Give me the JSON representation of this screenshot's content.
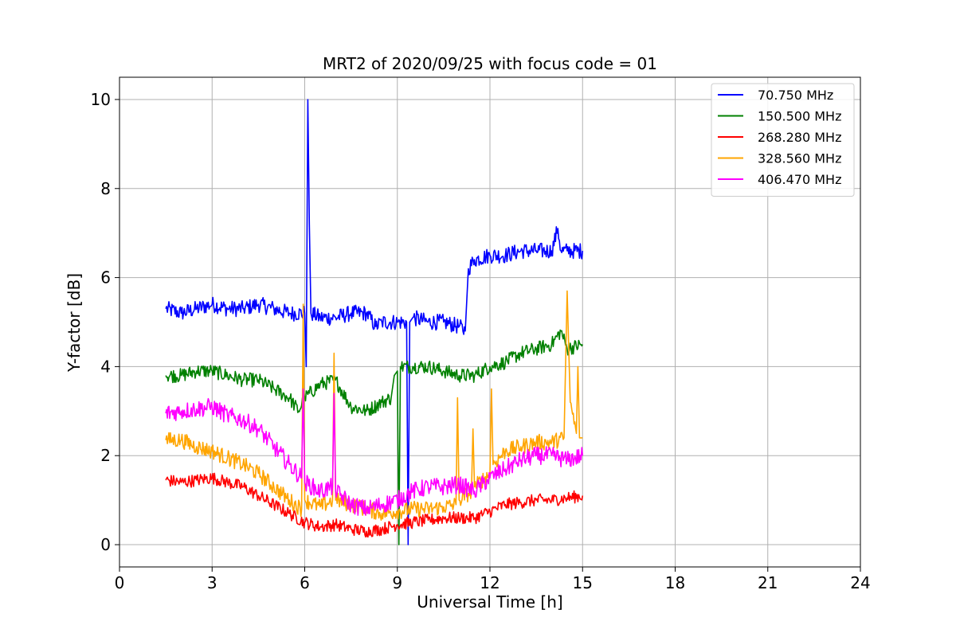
{
  "chart_data": {
    "type": "line",
    "title": "MRT2 of 2020/09/25 with focus code = 01",
    "xlabel": "Universal Time [h]",
    "ylabel": "Y-factor [dB]",
    "xlim": [
      0,
      24
    ],
    "ylim": [
      -0.5,
      10.5
    ],
    "xticks": [
      0,
      3,
      6,
      9,
      12,
      15,
      18,
      21,
      24
    ],
    "yticks": [
      0,
      2,
      4,
      6,
      8,
      10
    ],
    "grid": true,
    "legend_position": "top-right",
    "series": [
      {
        "name": " 70.750 MHz",
        "color": "#0000ff",
        "x": [
          1.5,
          2.0,
          2.5,
          3.0,
          3.5,
          4.0,
          4.5,
          5.0,
          5.5,
          6.0,
          6.05,
          6.1,
          6.15,
          6.2,
          6.5,
          7.0,
          7.5,
          8.0,
          8.3,
          8.5,
          9.0,
          9.3,
          9.35,
          9.4,
          9.5,
          10.0,
          10.5,
          11.0,
          11.2,
          11.3,
          11.5,
          12.0,
          12.5,
          13.0,
          13.5,
          14.0,
          14.2,
          14.3,
          14.5,
          15.0
        ],
        "y": [
          5.3,
          5.2,
          5.3,
          5.4,
          5.3,
          5.3,
          5.4,
          5.3,
          5.2,
          5.2,
          4.0,
          10.0,
          7.2,
          5.2,
          5.1,
          5.1,
          5.2,
          5.2,
          4.9,
          5.0,
          5.0,
          5.0,
          0.0,
          5.0,
          5.1,
          5.0,
          5.0,
          4.9,
          4.8,
          6.2,
          6.4,
          6.5,
          6.5,
          6.6,
          6.6,
          6.6,
          7.1,
          6.6,
          6.6,
          6.6
        ]
      },
      {
        "name": "150.500 MHz",
        "color": "#008000",
        "x": [
          1.5,
          2.0,
          2.5,
          3.0,
          3.5,
          4.0,
          4.5,
          5.0,
          5.5,
          5.8,
          6.0,
          6.5,
          7.0,
          7.5,
          8.0,
          8.5,
          8.8,
          8.9,
          9.0,
          9.05,
          9.1,
          9.5,
          10.0,
          10.5,
          11.0,
          11.5,
          12.0,
          12.5,
          13.0,
          13.5,
          14.0,
          14.3,
          14.5,
          15.0
        ],
        "y": [
          3.8,
          3.8,
          3.9,
          3.9,
          3.8,
          3.7,
          3.7,
          3.5,
          3.3,
          3.0,
          3.3,
          3.6,
          3.7,
          3.1,
          3.0,
          3.2,
          3.3,
          3.8,
          3.9,
          0.0,
          4.0,
          4.0,
          4.0,
          3.9,
          3.8,
          3.8,
          4.0,
          4.1,
          4.3,
          4.4,
          4.5,
          4.8,
          4.4,
          4.5
        ]
      },
      {
        "name": "268.280 MHz",
        "color": "#ff0000",
        "x": [
          1.5,
          2.0,
          2.5,
          3.0,
          3.5,
          4.0,
          4.5,
          5.0,
          5.5,
          6.0,
          6.5,
          7.0,
          7.5,
          8.0,
          8.5,
          9.0,
          9.5,
          10.0,
          10.5,
          11.0,
          11.5,
          12.0,
          12.5,
          13.0,
          13.5,
          14.0,
          14.5,
          15.0
        ],
        "y": [
          1.45,
          1.4,
          1.45,
          1.5,
          1.4,
          1.3,
          1.1,
          0.9,
          0.7,
          0.5,
          0.4,
          0.45,
          0.35,
          0.3,
          0.35,
          0.45,
          0.5,
          0.55,
          0.6,
          0.6,
          0.6,
          0.75,
          0.9,
          0.95,
          1.0,
          1.0,
          1.05,
          1.1
        ]
      },
      {
        "name": "328.560 MHz",
        "color": "#ffa500",
        "x": [
          1.5,
          2.0,
          2.5,
          3.0,
          3.5,
          4.0,
          4.5,
          5.0,
          5.5,
          5.9,
          5.95,
          6.0,
          6.5,
          6.9,
          6.95,
          7.0,
          7.5,
          8.0,
          8.5,
          9.0,
          9.5,
          10.0,
          10.5,
          10.9,
          10.95,
          11.0,
          11.4,
          11.45,
          11.5,
          12.0,
          12.05,
          12.1,
          12.5,
          13.0,
          13.5,
          14.0,
          14.4,
          14.5,
          14.6,
          14.8,
          14.85,
          14.9,
          15.0
        ],
        "y": [
          2.35,
          2.35,
          2.2,
          2.1,
          1.95,
          1.8,
          1.6,
          1.3,
          1.0,
          0.8,
          5.4,
          1.0,
          0.85,
          1.0,
          4.3,
          1.0,
          0.9,
          0.8,
          0.7,
          0.75,
          0.8,
          0.8,
          0.85,
          0.9,
          3.3,
          1.0,
          1.2,
          2.6,
          1.3,
          1.6,
          3.5,
          1.8,
          2.1,
          2.2,
          2.3,
          2.3,
          2.4,
          5.7,
          3.2,
          2.5,
          4.0,
          2.4,
          2.4
        ]
      },
      {
        "name": "406.470 MHz",
        "color": "#ff00ff",
        "x": [
          1.5,
          2.0,
          2.5,
          3.0,
          3.5,
          4.0,
          4.5,
          5.0,
          5.5,
          5.9,
          5.95,
          6.0,
          6.5,
          6.9,
          6.95,
          7.0,
          7.5,
          8.0,
          8.5,
          9.0,
          9.5,
          10.0,
          10.5,
          11.0,
          11.5,
          12.0,
          12.5,
          13.0,
          13.5,
          14.0,
          14.5,
          15.0
        ],
        "y": [
          2.95,
          3.0,
          3.05,
          3.1,
          2.9,
          2.8,
          2.6,
          2.2,
          1.8,
          1.5,
          3.5,
          1.4,
          1.2,
          1.3,
          3.4,
          1.2,
          0.9,
          0.8,
          0.9,
          1.0,
          1.2,
          1.3,
          1.3,
          1.35,
          1.2,
          1.5,
          1.7,
          1.9,
          2.0,
          2.0,
          1.9,
          2.0
        ]
      }
    ]
  }
}
